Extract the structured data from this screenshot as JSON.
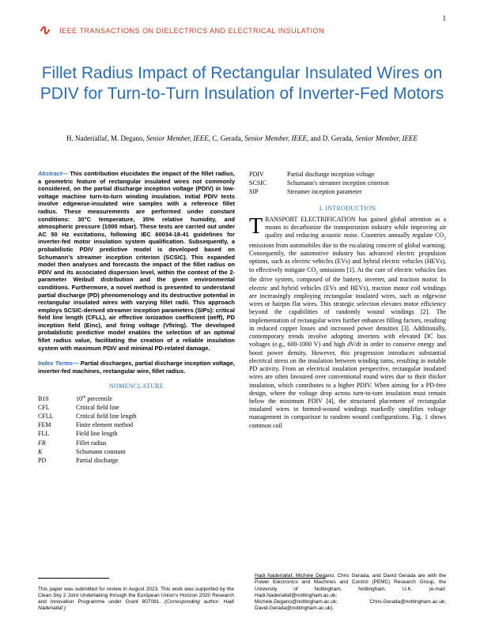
{
  "pagenum": "1",
  "journal": "IEEE TRANSACTIONS ON DIELECTRICS AND ELECTRICAL INSULATION",
  "logo_text": "∿",
  "title": "Fillet Radius Impact of Rectangular Insulated Wires on PDIV for Turn-to-Turn Insulation of Inverter-Fed Motors",
  "authors_html": "H. Naderiallaf, M. Degano, <span class='role'>Senior Member, IEEE</span>, C. Gerada, <span class='role'>Senior Member, IEEE</span>, and D. Gerada, <span class='role'>Senior Member, IEEE</span>",
  "abstract_label": "Abstract—",
  "abstract_text": " This contribution elucidates the impact of the fillet radius, a geometric feature of rectangular insulated wires not commonly considered, on the partial discharge inception voltage (PDIV) in low-voltage machine turn-to-turn winding insulation. Initial PDIV tests involve edgewise-insulated wire samples with a reference fillet radius. These measurements are performed under constant conditions: 30°C temperature, 35% relative humidity, and atmospheric pressure (1000 mbar). These tests are carried out under AC 50 Hz excitations, following IEC 60034-18-41 guidelines for inverter-fed motor insulation system qualification. Subsequently, a probabilistic PDIV predictive model is developed based on Schumann's streamer inception criterion (SCSIC). This expanded model then analyses and forecasts the impact of the fillet radius on PDIV and its associated dispersion level, within the context of the 2-parameter Weibull distribution and the given environmental conditions. Furthermore, a novel method is presented to understand partial discharge (PD) phenomenology and its destructive potential in rectangular insulated wires with varying fillet radii. This approach employs SCSIC-derived streamer inception parameters (SIPs): critical field line length (CFLL), air effective ionization coefficient (αeff), PD inception field (Einc), and firing voltage (Vfiring). The developed probabilistic predictive model enables the selection of an optimal fillet radius value, facilitating the creation of a reliable insulation system with maximum PDIV and minimal PD-related damage.",
  "index_terms_label": "Index Terms—",
  "index_terms_text": " Partial discharges, partial discharge inception voltage, inverter-fed machines, rectangular wire, fillet radius.",
  "nomenclature_head": "NOMENCLATURE",
  "nomenclature_left": [
    {
      "sym": "B10",
      "def": "10<sup>th</sup> percentile",
      "italic": false
    },
    {
      "sym": "CFL",
      "def": "Critical field line",
      "italic": false
    },
    {
      "sym": "CFLL",
      "def": "Critical field line length",
      "italic": false
    },
    {
      "sym": "FEM",
      "def": "Finite element method",
      "italic": false
    },
    {
      "sym": "FLL",
      "def": "Field line length",
      "italic": false
    },
    {
      "sym": "FR",
      "def": "Fillet radius",
      "italic": true
    },
    {
      "sym": "K",
      "def": "Schumann constant",
      "italic": true
    },
    {
      "sym": "PD",
      "def": "Partial discharge",
      "italic": false
    }
  ],
  "nomenclature_right": [
    {
      "sym": "PDIV",
      "def": "Partial discharge inception voltage",
      "italic": false
    },
    {
      "sym": "SCSIC",
      "def": "Schumann's streamer inception criterion",
      "italic": false
    },
    {
      "sym": "SIP",
      "def": "Streamer inception parameter",
      "italic": false
    }
  ],
  "intro_head": "I. INTRODUCTION",
  "intro_dropcap": "T",
  "intro_firstword": "RANSPORT ELECTRIFICATION",
  "intro_text": " has gained global attention as a means to decarbonize the transportation industry while improving air quality and reducing acoustic noise. Countries annually regulate CO<sub>2</sub> emissions from automobiles due to the escalating concern of global warming. Consequently, the automotive industry has advanced electric propulsion options, such as electric vehicles (EVs) and hybrid electric vehicles (HEVs), to effectively mitigate CO<sub>2</sub> omissions [1]. At the core of electric vehicles lies the drive system, composed of the battery, inverter, and traction motor. In electric and hybrid vehicles (EVs and HEVs), traction motor coil windings are increasingly employing rectangular insulated wires, such as edgewise wires or hairpin flat wires. This strategic selection elevates motor efficiency beyond the capabilities of randomly wound windings [2]. The implementation of rectangular wires further enhances filling factors, resulting in reduced copper losses and increased power densities [3]. Additionally, contemporary trends involve adopting inverters with elevated DC bus voltages (e.g., 600-1000 V) and high <i>dV/dt</i> in order to conserve energy and boost power density. However, this progression introduces substantial electrical stress on the insulation between winding turns, resulting in notable PD activity. From an electrical insulation perspective, rectangular insulated wires are often favoured over conventional round wires due to their thicker insulation, which contributes to a higher PDIV. When aiming for a PD-free design, where the voltage drop across turn-to-turn insulation must remain below the minimum PDIV [4], the structured placement of rectangular insulated wires in formed-wound windings markedly simplifies voltage management in comparison to random wound configurations. Fig. 1 shows common coil",
  "footnote_left": "This paper was submitted for review in August 2023. This work was supported by the Clean Sky 2 Joint Undertaking through the European Union's Horizon 2020 Research and Innovation Programme under Grant 807081. <i>(Corresponding author: Hadi Naderiallaf.)</i>",
  "footnote_right": "Hadi Naderiallaf, Michele Degano, Chris Gerada, and David Gerada are with the Power Electronics and Machines and Control (PEMC) Research Group, the University of Nottingham, Nottingham, U.K. (e-mail: Hadi.Naderiallaf@nottingham.ac.uk;<br>Michele.Degano@nottingham.ac.uk; Chris.Gerada@nottingham.ac.uk; David.Gerada@nottingham.ac.uk)."
}
